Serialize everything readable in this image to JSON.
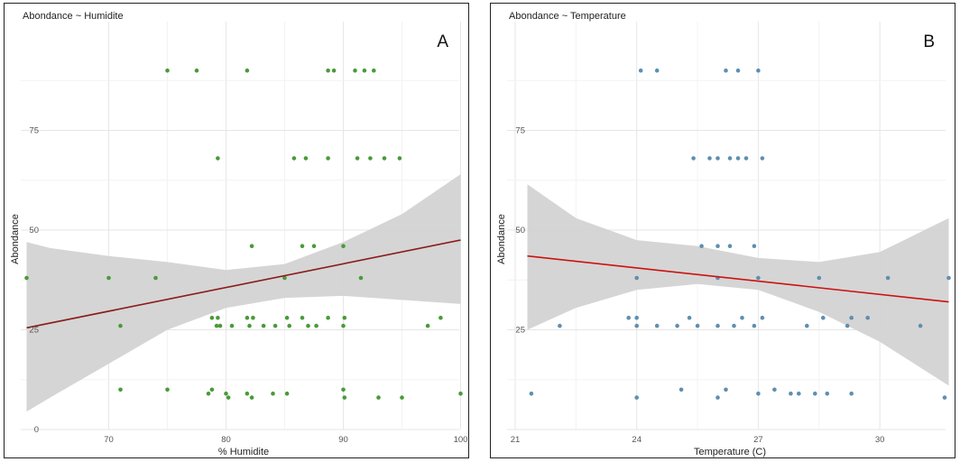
{
  "chart_data": [
    {
      "type": "scatter",
      "panel_letter": "A",
      "title": "Abondance ~ Humidite",
      "xlabel": "% Humidite",
      "ylabel": "Abondance",
      "xlim": [
        62.5,
        100.5
      ],
      "ylim": [
        0,
        100
      ],
      "x_ticks": [
        70,
        80,
        90,
        100
      ],
      "y_ticks": [
        0,
        25,
        50,
        75
      ],
      "grid": true,
      "point_color": "#4a9a3a",
      "line_color": "#8b1a1a",
      "ribbon_color": "#d3d3d3",
      "fit": {
        "x": [
          63,
          100
        ],
        "y": [
          25.5,
          47.5
        ]
      },
      "ribbon": {
        "x": [
          63,
          65,
          70,
          75,
          80,
          85,
          90,
          95,
          100
        ],
        "lower": [
          4.5,
          8,
          16.5,
          25,
          30.5,
          33,
          33.5,
          32.5,
          31.5
        ],
        "upper": [
          47,
          45.5,
          43.5,
          42,
          40,
          41.5,
          47,
          54,
          64
        ]
      },
      "points": [
        {
          "x": 63,
          "y": 38
        },
        {
          "x": 70,
          "y": 38
        },
        {
          "x": 74,
          "y": 38
        },
        {
          "x": 85,
          "y": 38
        },
        {
          "x": 91.5,
          "y": 38
        },
        {
          "x": 71,
          "y": 26
        },
        {
          "x": 78.8,
          "y": 28
        },
        {
          "x": 79.2,
          "y": 26
        },
        {
          "x": 79.3,
          "y": 28
        },
        {
          "x": 79.5,
          "y": 26
        },
        {
          "x": 80.5,
          "y": 26
        },
        {
          "x": 81.8,
          "y": 28
        },
        {
          "x": 82,
          "y": 26
        },
        {
          "x": 82.3,
          "y": 28
        },
        {
          "x": 83.2,
          "y": 26
        },
        {
          "x": 84.2,
          "y": 26
        },
        {
          "x": 85.2,
          "y": 28
        },
        {
          "x": 85.4,
          "y": 26
        },
        {
          "x": 86.5,
          "y": 28
        },
        {
          "x": 87,
          "y": 26
        },
        {
          "x": 87.7,
          "y": 26
        },
        {
          "x": 88.7,
          "y": 28
        },
        {
          "x": 90,
          "y": 26
        },
        {
          "x": 90.1,
          "y": 28
        },
        {
          "x": 97.2,
          "y": 26
        },
        {
          "x": 98.3,
          "y": 28
        },
        {
          "x": 82.2,
          "y": 46
        },
        {
          "x": 86.5,
          "y": 46
        },
        {
          "x": 87.5,
          "y": 46
        },
        {
          "x": 90,
          "y": 46
        },
        {
          "x": 79.3,
          "y": 68
        },
        {
          "x": 85.8,
          "y": 68
        },
        {
          "x": 86.8,
          "y": 68
        },
        {
          "x": 88.7,
          "y": 68
        },
        {
          "x": 91.2,
          "y": 68
        },
        {
          "x": 92.3,
          "y": 68
        },
        {
          "x": 93.5,
          "y": 68
        },
        {
          "x": 94.8,
          "y": 68
        },
        {
          "x": 75,
          "y": 90
        },
        {
          "x": 77.5,
          "y": 90
        },
        {
          "x": 81.8,
          "y": 90
        },
        {
          "x": 88.7,
          "y": 90
        },
        {
          "x": 89.2,
          "y": 90
        },
        {
          "x": 91,
          "y": 90
        },
        {
          "x": 91.8,
          "y": 90
        },
        {
          "x": 92.6,
          "y": 90
        },
        {
          "x": 71,
          "y": 10
        },
        {
          "x": 75,
          "y": 10
        },
        {
          "x": 78.5,
          "y": 9
        },
        {
          "x": 78.8,
          "y": 10
        },
        {
          "x": 80,
          "y": 9
        },
        {
          "x": 80.2,
          "y": 8
        },
        {
          "x": 81.8,
          "y": 9
        },
        {
          "x": 82.2,
          "y": 8
        },
        {
          "x": 84,
          "y": 9
        },
        {
          "x": 85.2,
          "y": 9
        },
        {
          "x": 90,
          "y": 10
        },
        {
          "x": 90.1,
          "y": 8
        },
        {
          "x": 93,
          "y": 8
        },
        {
          "x": 95,
          "y": 8
        },
        {
          "x": 100,
          "y": 9
        }
      ]
    },
    {
      "type": "scatter",
      "panel_letter": "B",
      "title": "Abondance ~ Temperature",
      "xlabel": "Temperature (C)",
      "ylabel": "Abondance",
      "xlim": [
        20.8,
        31.8
      ],
      "ylim": [
        0,
        100
      ],
      "x_ticks": [
        21,
        24,
        27,
        30
      ],
      "y_ticks": [
        25,
        50,
        75
      ],
      "grid": true,
      "point_color": "#5f8fb0",
      "line_color": "#cc1111",
      "ribbon_color": "#d3d3d3",
      "fit": {
        "x": [
          21.3,
          31.7
        ],
        "y": [
          43.5,
          32
        ]
      },
      "ribbon": {
        "x": [
          21.3,
          22.5,
          24,
          25.5,
          27,
          28.5,
          30,
          31.7
        ],
        "lower": [
          25,
          30.5,
          35,
          36.5,
          35,
          29.5,
          22,
          11
        ],
        "upper": [
          61.5,
          53,
          47.5,
          46,
          43,
          42,
          44.5,
          53
        ]
      },
      "points": [
        {
          "x": 21.4,
          "y": 9
        },
        {
          "x": 22.1,
          "y": 26
        },
        {
          "x": 23.8,
          "y": 28
        },
        {
          "x": 24,
          "y": 26
        },
        {
          "x": 24,
          "y": 28
        },
        {
          "x": 24.5,
          "y": 26
        },
        {
          "x": 25,
          "y": 26
        },
        {
          "x": 25.3,
          "y": 28
        },
        {
          "x": 25.5,
          "y": 26
        },
        {
          "x": 26,
          "y": 26
        },
        {
          "x": 26.4,
          "y": 26
        },
        {
          "x": 26.6,
          "y": 28
        },
        {
          "x": 26.9,
          "y": 26
        },
        {
          "x": 27.1,
          "y": 28
        },
        {
          "x": 28.2,
          "y": 26
        },
        {
          "x": 28.6,
          "y": 28
        },
        {
          "x": 29.2,
          "y": 26
        },
        {
          "x": 29.3,
          "y": 28
        },
        {
          "x": 29.7,
          "y": 28
        },
        {
          "x": 31,
          "y": 26
        },
        {
          "x": 24,
          "y": 38
        },
        {
          "x": 26,
          "y": 38
        },
        {
          "x": 27,
          "y": 38
        },
        {
          "x": 28.5,
          "y": 38
        },
        {
          "x": 30.2,
          "y": 38
        },
        {
          "x": 31.7,
          "y": 38
        },
        {
          "x": 25.6,
          "y": 46
        },
        {
          "x": 26,
          "y": 46
        },
        {
          "x": 26.3,
          "y": 46
        },
        {
          "x": 26.9,
          "y": 46
        },
        {
          "x": 25.4,
          "y": 68
        },
        {
          "x": 25.8,
          "y": 68
        },
        {
          "x": 26,
          "y": 68
        },
        {
          "x": 26.3,
          "y": 68
        },
        {
          "x": 26.5,
          "y": 68
        },
        {
          "x": 26.7,
          "y": 68
        },
        {
          "x": 27.1,
          "y": 68
        },
        {
          "x": 24.1,
          "y": 90
        },
        {
          "x": 24.5,
          "y": 90
        },
        {
          "x": 26.2,
          "y": 90
        },
        {
          "x": 26.5,
          "y": 90
        },
        {
          "x": 27,
          "y": 90
        },
        {
          "x": 24,
          "y": 8
        },
        {
          "x": 25.1,
          "y": 10
        },
        {
          "x": 26,
          "y": 8
        },
        {
          "x": 26.2,
          "y": 10
        },
        {
          "x": 27,
          "y": 9
        },
        {
          "x": 27.4,
          "y": 10
        },
        {
          "x": 27.8,
          "y": 9
        },
        {
          "x": 28,
          "y": 9
        },
        {
          "x": 28.4,
          "y": 9
        },
        {
          "x": 28.7,
          "y": 9
        },
        {
          "x": 29.3,
          "y": 9
        },
        {
          "x": 31.6,
          "y": 8
        }
      ]
    }
  ]
}
